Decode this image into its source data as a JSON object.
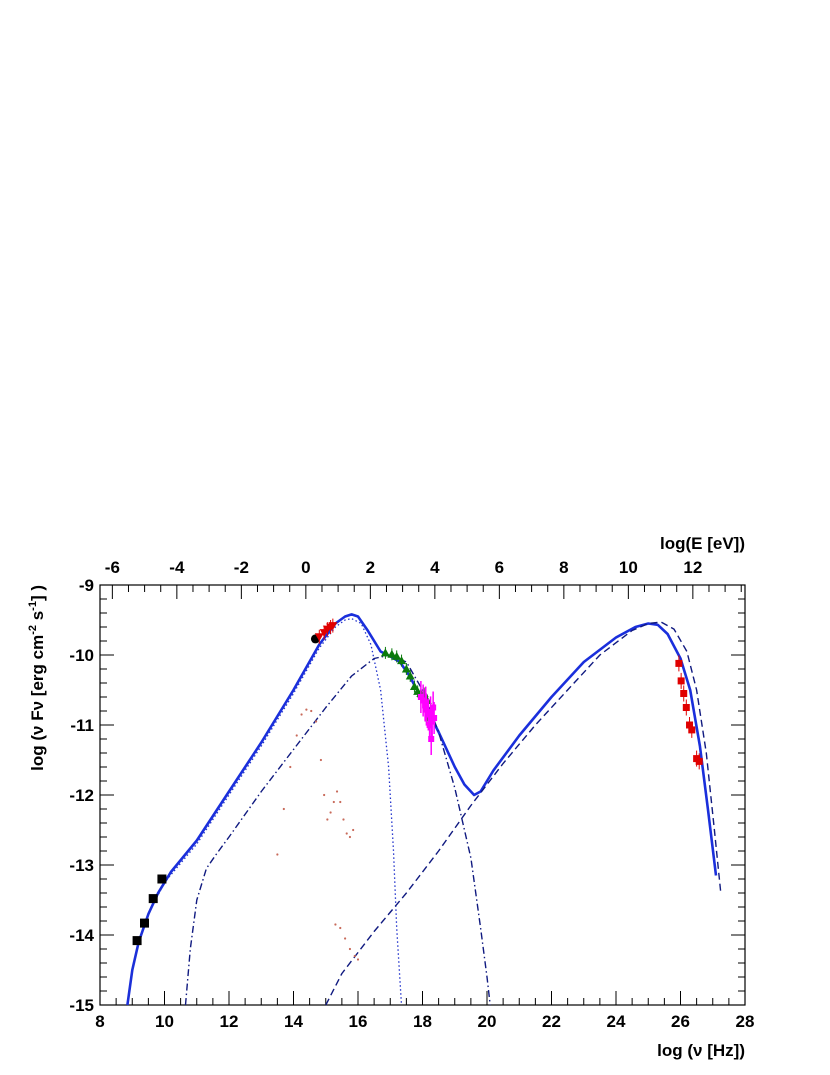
{
  "chart_data": {
    "type": "scatter",
    "title": "",
    "xlabel": "log (ν [Hz])",
    "ylabel_parts": {
      "pre": "log (ν Fν [erg cm",
      "sup1": "-2",
      "mid": " s",
      "sup2": "-1",
      "post": "] )"
    },
    "top_axis_label": "log(E [eV])",
    "xlim": [
      8,
      28
    ],
    "ylim": [
      -15,
      -9
    ],
    "x_ticks": [
      "8",
      "10",
      "12",
      "14",
      "16",
      "18",
      "20",
      "22",
      "24",
      "26",
      "28"
    ],
    "y_ticks": [
      "-15",
      "-14",
      "-13",
      "-12",
      "-11",
      "-10",
      "-9"
    ],
    "top_ticks": [
      "-6",
      "-4",
      "-2",
      "0",
      "2",
      "4",
      "6",
      "8",
      "10",
      "12"
    ],
    "grid": false,
    "legend": "none",
    "series": [
      {
        "style": "black-square",
        "points": [
          [
            9.15,
            -14.08
          ],
          [
            9.38,
            -13.83
          ],
          [
            9.65,
            -13.48
          ],
          [
            9.92,
            -13.2
          ]
        ]
      },
      {
        "style": "black-circle",
        "points": [
          [
            14.68,
            -9.77
          ]
        ]
      },
      {
        "style": "red-triangle-down",
        "points": [
          [
            14.8,
            -9.74
          ],
          [
            14.95,
            -9.68
          ],
          [
            15.05,
            -9.63
          ],
          [
            15.15,
            -9.6
          ],
          [
            15.22,
            -9.58
          ]
        ]
      },
      {
        "style": "green-triangle",
        "points": [
          [
            16.85,
            -9.97
          ],
          [
            17.05,
            -9.99
          ],
          [
            17.2,
            -10.02
          ],
          [
            17.35,
            -10.08
          ],
          [
            17.5,
            -10.2
          ],
          [
            17.62,
            -10.3
          ],
          [
            17.75,
            -10.45
          ],
          [
            17.85,
            -10.52
          ],
          [
            17.95,
            -10.55
          ],
          [
            18.05,
            -10.55
          ],
          [
            18.15,
            -10.65
          ],
          [
            18.2,
            -10.9
          ]
        ]
      },
      {
        "style": "magenta-error",
        "points": [
          [
            17.95,
            -10.6
          ],
          [
            18.02,
            -10.65
          ],
          [
            18.08,
            -10.72
          ],
          [
            18.12,
            -10.78
          ],
          [
            18.18,
            -10.85
          ],
          [
            18.22,
            -11.0
          ],
          [
            18.27,
            -11.2
          ],
          [
            18.3,
            -10.95
          ],
          [
            18.33,
            -10.75
          ],
          [
            18.36,
            -10.9
          ],
          [
            18.1,
            -10.68
          ],
          [
            18.25,
            -10.82
          ]
        ]
      },
      {
        "style": "red-square",
        "points": [
          [
            25.95,
            -10.12
          ],
          [
            26.02,
            -10.37
          ],
          [
            26.1,
            -10.55
          ],
          [
            26.18,
            -10.75
          ],
          [
            26.28,
            -11.0
          ],
          [
            26.35,
            -11.07
          ],
          [
            26.5,
            -11.48
          ],
          [
            26.58,
            -11.52
          ]
        ]
      },
      {
        "style": "brown-dots",
        "points": [
          [
            13.5,
            -12.85
          ],
          [
            13.7,
            -12.2
          ],
          [
            13.9,
            -11.6
          ],
          [
            14.1,
            -11.15
          ],
          [
            14.25,
            -10.85
          ],
          [
            14.4,
            -10.78
          ],
          [
            14.55,
            -10.8
          ],
          [
            14.7,
            -10.95
          ],
          [
            14.85,
            -11.5
          ],
          [
            14.95,
            -12.0
          ],
          [
            15.05,
            -12.35
          ],
          [
            15.15,
            -12.25
          ],
          [
            15.25,
            -12.1
          ],
          [
            15.35,
            -11.95
          ],
          [
            15.45,
            -12.1
          ],
          [
            15.55,
            -12.35
          ],
          [
            15.65,
            -12.55
          ],
          [
            15.75,
            -12.6
          ],
          [
            15.85,
            -12.5
          ],
          [
            15.3,
            -13.85
          ],
          [
            15.45,
            -13.9
          ],
          [
            15.6,
            -14.05
          ],
          [
            15.75,
            -14.2
          ],
          [
            15.9,
            -14.3
          ],
          [
            16.0,
            -14.35
          ]
        ]
      },
      {
        "style": "blue-solid",
        "points": [
          [
            8.85,
            -15.0
          ],
          [
            9.0,
            -14.5
          ],
          [
            9.2,
            -14.1
          ],
          [
            9.5,
            -13.7
          ],
          [
            9.8,
            -13.4
          ],
          [
            10.2,
            -13.1
          ],
          [
            11.0,
            -12.65
          ],
          [
            12.0,
            -11.95
          ],
          [
            13.0,
            -11.25
          ],
          [
            14.0,
            -10.5
          ],
          [
            14.8,
            -9.85
          ],
          [
            15.3,
            -9.55
          ],
          [
            15.6,
            -9.45
          ],
          [
            15.8,
            -9.42
          ],
          [
            16.0,
            -9.45
          ],
          [
            16.3,
            -9.65
          ],
          [
            16.7,
            -9.95
          ],
          [
            17.0,
            -10.02
          ],
          [
            17.3,
            -10.1
          ],
          [
            17.6,
            -10.3
          ],
          [
            18.0,
            -10.65
          ],
          [
            18.5,
            -11.1
          ],
          [
            19.0,
            -11.6
          ],
          [
            19.3,
            -11.85
          ],
          [
            19.6,
            -12.0
          ],
          [
            19.8,
            -11.95
          ],
          [
            20.2,
            -11.65
          ],
          [
            21.0,
            -11.15
          ],
          [
            22.0,
            -10.6
          ],
          [
            23.0,
            -10.1
          ],
          [
            24.0,
            -9.75
          ],
          [
            24.6,
            -9.6
          ],
          [
            25.0,
            -9.55
          ],
          [
            25.3,
            -9.57
          ],
          [
            25.6,
            -9.7
          ],
          [
            26.0,
            -10.05
          ],
          [
            26.3,
            -10.5
          ],
          [
            26.6,
            -11.3
          ],
          [
            26.85,
            -12.2
          ],
          [
            27.1,
            -13.15
          ]
        ]
      },
      {
        "style": "blue-dotted",
        "points": [
          [
            8.85,
            -15.0
          ],
          [
            9.0,
            -14.5
          ],
          [
            9.2,
            -14.1
          ],
          [
            9.5,
            -13.7
          ],
          [
            10.0,
            -13.25
          ],
          [
            11.0,
            -12.7
          ],
          [
            12.0,
            -12.0
          ],
          [
            13.0,
            -11.3
          ],
          [
            14.0,
            -10.55
          ],
          [
            14.8,
            -9.9
          ],
          [
            15.3,
            -9.6
          ],
          [
            15.6,
            -9.5
          ],
          [
            15.8,
            -9.48
          ],
          [
            16.1,
            -9.55
          ],
          [
            16.4,
            -9.85
          ],
          [
            16.7,
            -10.5
          ],
          [
            16.95,
            -11.6
          ],
          [
            17.1,
            -12.8
          ],
          [
            17.2,
            -13.9
          ],
          [
            17.35,
            -15.0
          ]
        ]
      },
      {
        "style": "navy-dashdot",
        "points": [
          [
            10.65,
            -15.0
          ],
          [
            10.8,
            -14.2
          ],
          [
            11.0,
            -13.5
          ],
          [
            11.3,
            -13.05
          ],
          [
            11.6,
            -12.85
          ],
          [
            12.0,
            -12.6
          ],
          [
            13.0,
            -11.95
          ],
          [
            14.0,
            -11.35
          ],
          [
            15.0,
            -10.75
          ],
          [
            15.8,
            -10.3
          ],
          [
            16.5,
            -10.05
          ],
          [
            17.0,
            -10.0
          ],
          [
            17.5,
            -10.1
          ],
          [
            18.0,
            -10.5
          ],
          [
            18.5,
            -11.1
          ],
          [
            19.0,
            -11.9
          ],
          [
            19.5,
            -12.9
          ],
          [
            19.8,
            -13.9
          ],
          [
            20.0,
            -14.6
          ],
          [
            20.1,
            -15.0
          ]
        ]
      },
      {
        "style": "navy-dashed",
        "points": [
          [
            15.0,
            -15.0
          ],
          [
            15.5,
            -14.55
          ],
          [
            16.5,
            -13.95
          ],
          [
            17.5,
            -13.4
          ],
          [
            18.5,
            -12.8
          ],
          [
            19.5,
            -12.15
          ],
          [
            20.5,
            -11.55
          ],
          [
            21.5,
            -11.0
          ],
          [
            22.5,
            -10.5
          ],
          [
            23.5,
            -10.0
          ],
          [
            24.5,
            -9.65
          ],
          [
            25.0,
            -9.55
          ],
          [
            25.4,
            -9.53
          ],
          [
            25.8,
            -9.63
          ],
          [
            26.2,
            -9.95
          ],
          [
            26.5,
            -10.5
          ],
          [
            26.8,
            -11.4
          ],
          [
            27.05,
            -12.5
          ],
          [
            27.25,
            -13.4
          ]
        ]
      }
    ]
  }
}
